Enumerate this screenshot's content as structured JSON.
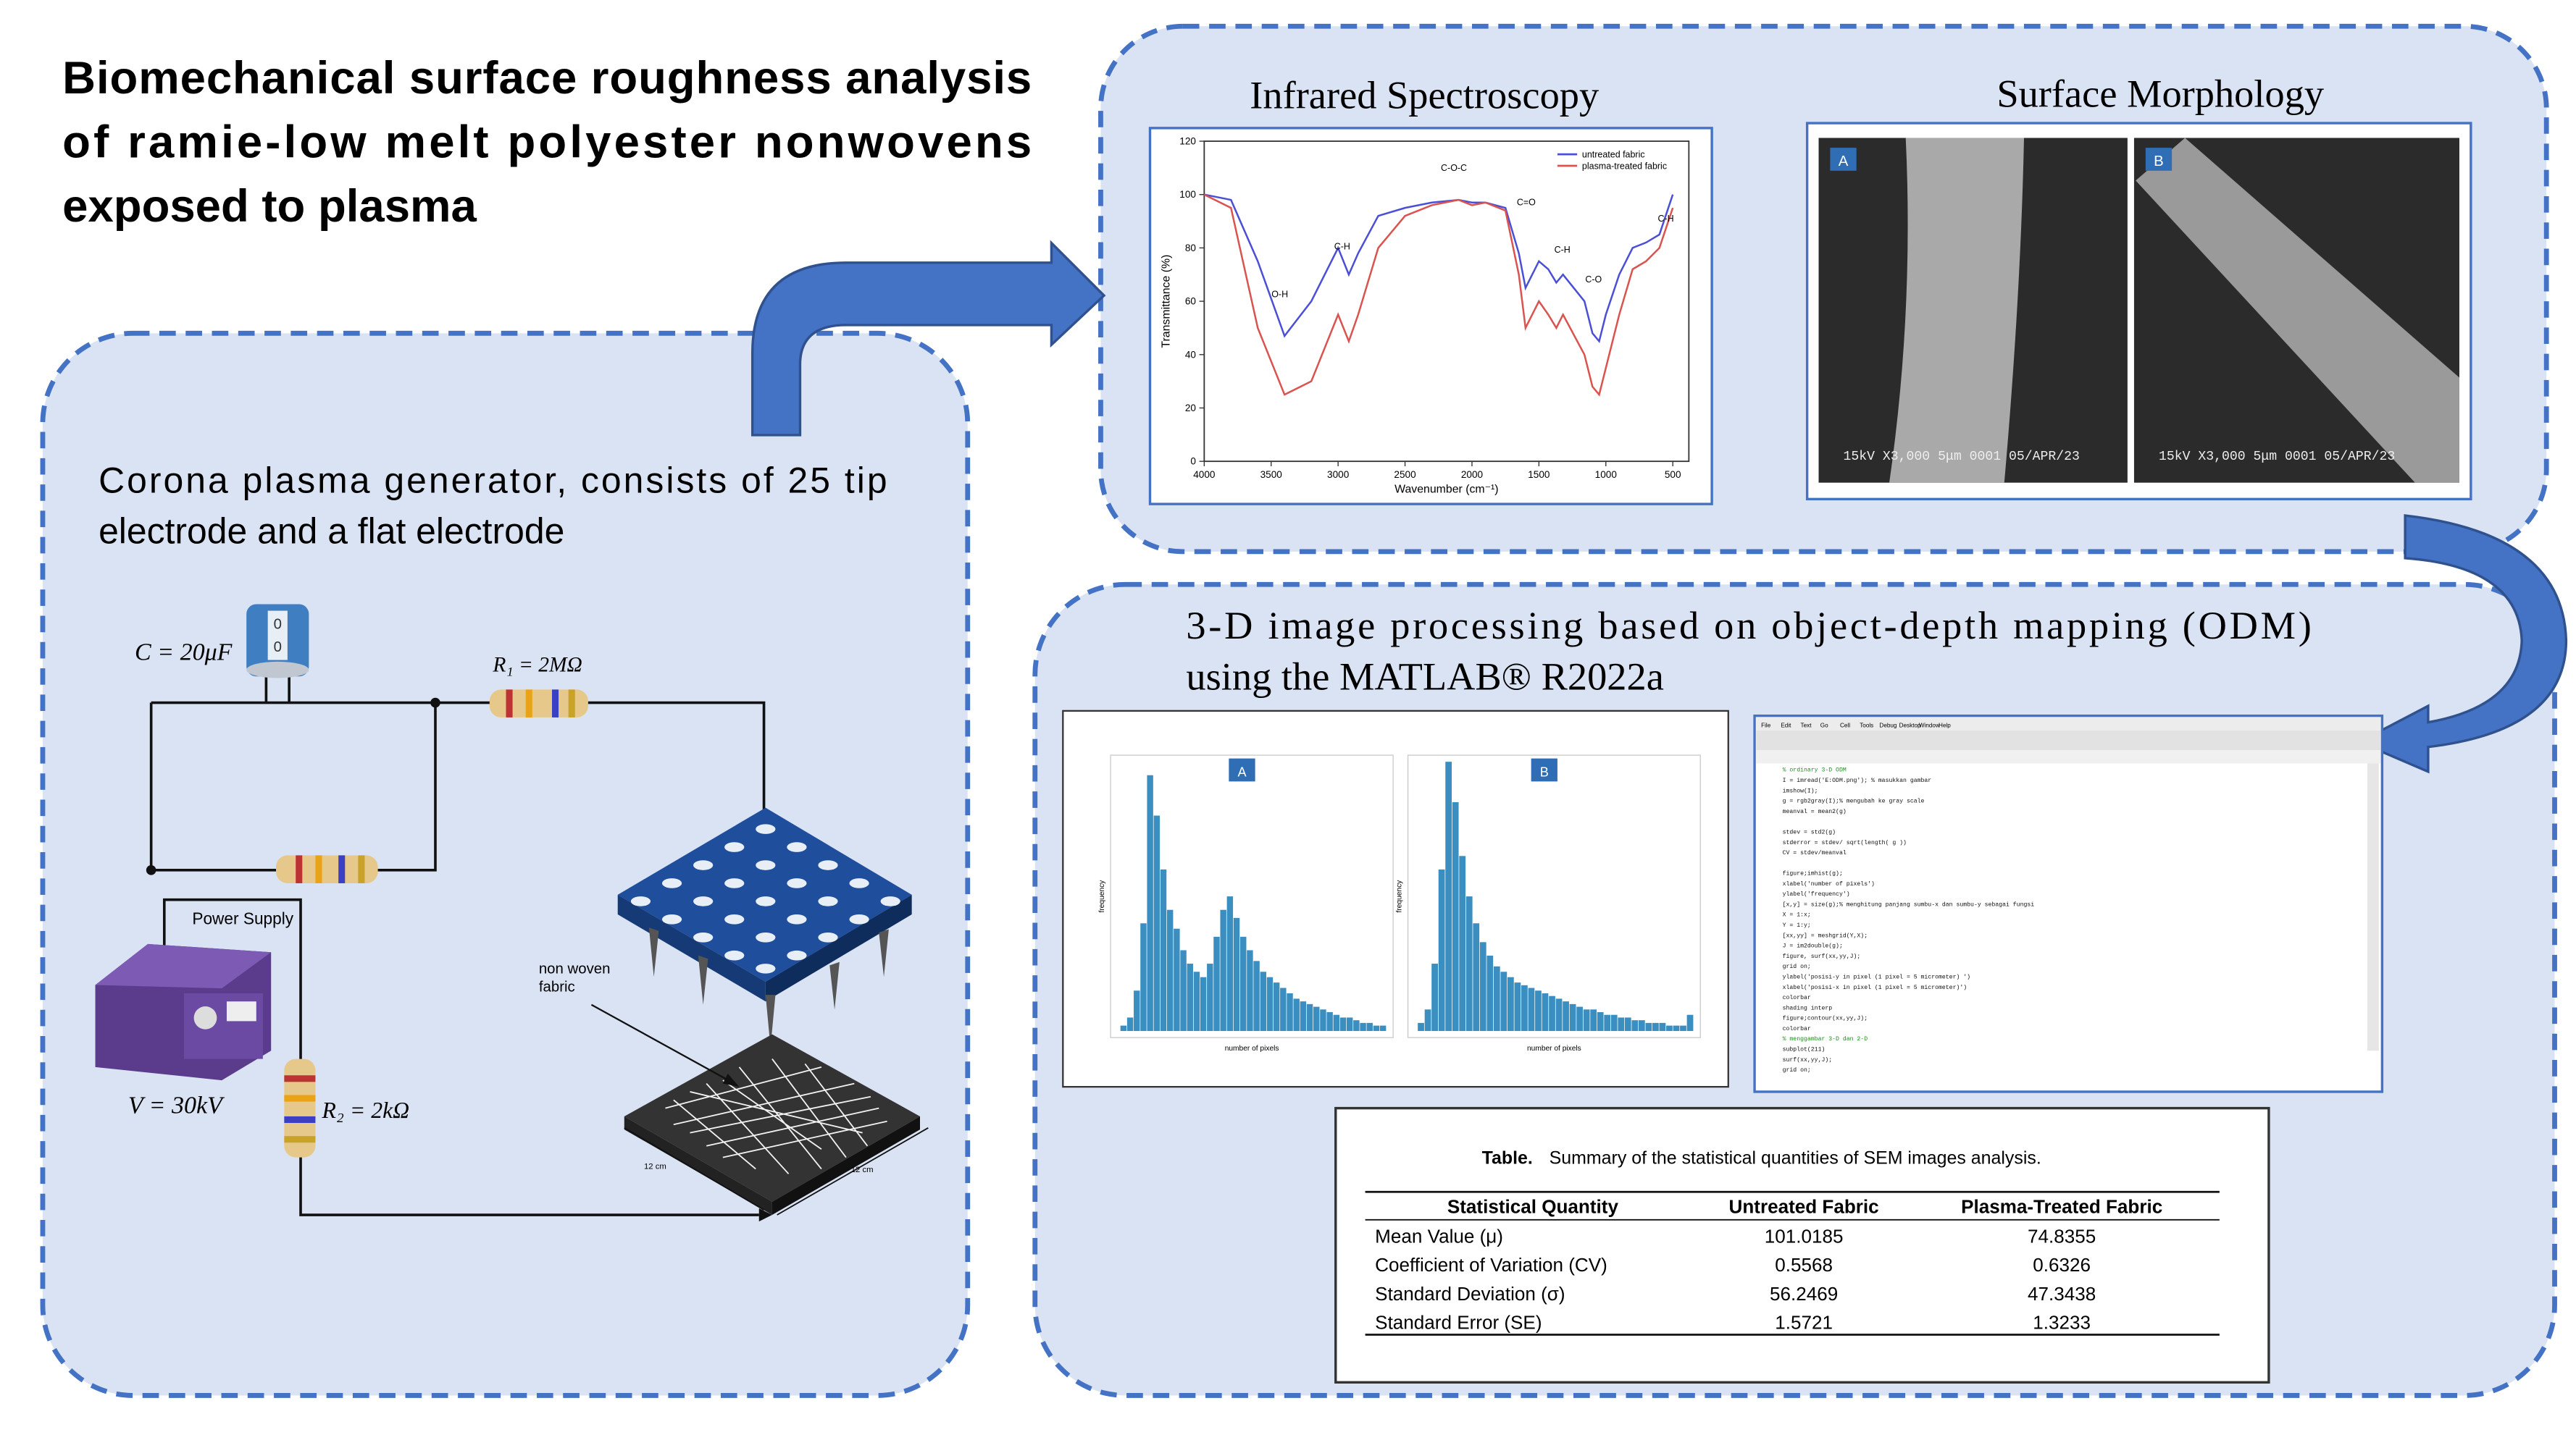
{
  "title_lines": [
    "Biomechanical surface roughness analysis",
    "of ramie-low melt polyester nonwovens",
    "exposed to plasma"
  ],
  "corona": {
    "text_lines": [
      "Corona plasma generator, consists of 25 tip",
      "electrode and a flat electrode"
    ],
    "capacitor_label": "C = 20μF",
    "r1_label": "R₁ = 2MΩ",
    "voltage_label": "V = 30kV",
    "r2_label": "R₂ = 2kΩ",
    "power_supply": "Power Supply",
    "fabric_label_lines": [
      "non woven",
      "fabric"
    ],
    "dimension_labels": [
      "12 cm",
      "12 cm"
    ]
  },
  "infrared": {
    "title": "Infrared Spectroscopy",
    "chart": {
      "type": "line",
      "x_label": "Wavenumber (cm⁻¹)",
      "y_label": "Transmittance (%)",
      "x": [
        4000,
        3800,
        3600,
        3400,
        3200,
        3000,
        2920,
        2850,
        2700,
        2500,
        2300,
        2100,
        2000,
        1900,
        1750,
        1650,
        1600,
        1500,
        1430,
        1370,
        1320,
        1160,
        1100,
        1050,
        1000,
        900,
        800,
        700,
        600,
        500
      ],
      "series": [
        {
          "name": "untreated fabric",
          "color": "#4a4fd6",
          "values": [
            100,
            98,
            75,
            47,
            60,
            80,
            70,
            78,
            92,
            95,
            97,
            98,
            97,
            97,
            95,
            78,
            65,
            75,
            72,
            67,
            70,
            60,
            48,
            45,
            55,
            70,
            80,
            82,
            85,
            100
          ]
        },
        {
          "name": "plasma-treated fabric",
          "color": "#d9534f",
          "values": [
            100,
            95,
            50,
            25,
            30,
            55,
            45,
            55,
            80,
            92,
            96,
            98,
            96,
            97,
            94,
            70,
            50,
            60,
            55,
            50,
            55,
            40,
            28,
            25,
            35,
            55,
            72,
            75,
            80,
            95
          ]
        }
      ],
      "xlim": [
        4000,
        380
      ],
      "ylim": [
        0,
        120
      ],
      "xticks": [
        4000,
        3500,
        3000,
        2500,
        2000,
        1500,
        1000,
        500
      ],
      "yticks": [
        0,
        20,
        40,
        60,
        80,
        100,
        120
      ],
      "peaks": [
        "O-H",
        "C-H",
        "C-O-C",
        "C=O",
        "C-H",
        "C-O",
        "C-H"
      ]
    }
  },
  "morphology": {
    "title": "Surface Morphology",
    "panels": [
      "A",
      "B"
    ],
    "captions": [
      "15kV  X3,000  5μm  0001 05/APR/23",
      "15kV  X3,000  5μm  0001 05/APR/23"
    ]
  },
  "odm": {
    "title_lines": [
      "3-D image processing based on object-depth mapping (ODM)",
      "using the MATLAB® R2022a"
    ]
  },
  "histograms": [
    {
      "type": "bar",
      "label": "A",
      "x_label": "number of pixels",
      "y_label": "frequency",
      "ylim": [
        0,
        100
      ],
      "values": [
        2,
        5,
        15,
        40,
        95,
        80,
        60,
        45,
        38,
        30,
        25,
        22,
        20,
        25,
        35,
        45,
        50,
        42,
        35,
        30,
        26,
        22,
        20,
        18,
        16,
        14,
        12,
        11,
        10,
        9,
        8,
        7,
        6,
        5,
        5,
        4,
        3,
        3,
        2,
        2
      ]
    },
    {
      "type": "bar",
      "label": "B",
      "x_label": "number of pixels",
      "y_label": "frequency",
      "ylim": [
        0,
        100
      ],
      "values": [
        3,
        8,
        25,
        60,
        100,
        85,
        65,
        50,
        40,
        33,
        28,
        24,
        22,
        20,
        18,
        17,
        16,
        15,
        14,
        13,
        12,
        11,
        10,
        9,
        8,
        8,
        7,
        6,
        6,
        5,
        5,
        4,
        4,
        3,
        3,
        3,
        2,
        2,
        2,
        6
      ]
    }
  ],
  "matlab": {
    "menu": [
      "File",
      "Edit",
      "Text",
      "Go",
      "Cell",
      "Tools",
      "Debug",
      "Desktop",
      "Window",
      "Help"
    ],
    "code_lines": [
      "% ordinary 3-D ODM",
      "I = imread('E:ODM.png'); % masukkan gambar",
      "imshow(I);",
      "g = rgb2gray(I);% mengubah ke gray scale",
      "meanval = mean2(g)",
      "",
      "stdev = std2(g)",
      "stderror = stdev/ sqrt(length( g ))",
      "CV = stdev/meanval",
      "",
      "figure;imhist(g);",
      "xlabel('number of pixels')",
      "ylabel('frequency')",
      "[x,y] = size(g);% menghitung panjang  sumbu-x dan sumbu-y sebagai fungsi",
      "X = 1:x;",
      "Y = 1:y;",
      "[xx,yy] = meshgrid(Y,X);",
      "J = im2double(g);",
      "figure, surf(xx,yy,J);",
      "grid on;",
      "ylabel('posisi-y in pixel (1 pixel = 5 micrometer) ')",
      "xlabel('posisi-x in pixel (1 pixel = 5 micrometer)')",
      "colorbar",
      "shading interp",
      "figure;contour(xx,yy,J);",
      "colorbar",
      "% menggambar 3-D dan 2-D",
      "subplot(211)",
      "surf(xx,yy,J);",
      "grid on;"
    ]
  },
  "table": {
    "caption_label": "Table.",
    "caption_text": "Summary of the statistical quantities of SEM images analysis.",
    "header": [
      "Statistical Quantity",
      "Untreated Fabric",
      "Plasma-Treated Fabric"
    ],
    "rows": [
      [
        "Mean Value (μ)",
        "101.0185",
        "74.8355"
      ],
      [
        "Coefficient of Variation (CV)",
        "0.5568",
        "0.6326"
      ],
      [
        "Standard Deviation (σ)",
        "56.2469",
        "47.3438"
      ],
      [
        "Standard Error (SE)",
        "1.5721",
        "1.3233"
      ]
    ]
  }
}
